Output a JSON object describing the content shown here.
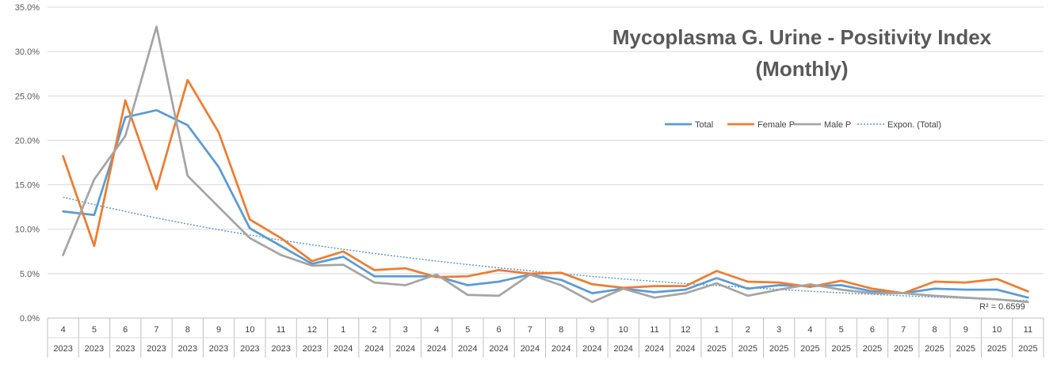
{
  "chart_data": {
    "type": "line",
    "title_lines": [
      "Mycoplasma G. Urine - Positivity Index",
      "(Monthly)"
    ],
    "xlabel": "",
    "ylabel": "",
    "ylim": [
      0,
      35
    ],
    "y_ticks": [
      "0.0%",
      "5.0%",
      "10.0%",
      "15.0%",
      "20.0%",
      "25.0%",
      "30.0%",
      "35.0%"
    ],
    "grid": true,
    "legend_position": "top-right",
    "months": [
      "4",
      "5",
      "6",
      "7",
      "8",
      "9",
      "10",
      "11",
      "12",
      "1",
      "2",
      "3",
      "4",
      "5",
      "6",
      "7",
      "8",
      "9",
      "10",
      "11",
      "12",
      "1",
      "2",
      "3",
      "4",
      "5",
      "6",
      "7",
      "8",
      "9",
      "10",
      "11"
    ],
    "years": [
      "2023",
      "2023",
      "2023",
      "2023",
      "2023",
      "2023",
      "2023",
      "2023",
      "2023",
      "2024",
      "2024",
      "2024",
      "2024",
      "2024",
      "2024",
      "2024",
      "2024",
      "2024",
      "2024",
      "2024",
      "2024",
      "2025",
      "2025",
      "2025",
      "2025",
      "2025",
      "2025",
      "2025",
      "2025",
      "2025",
      "2025",
      "2025"
    ],
    "series": [
      {
        "name": "Total",
        "color": "#5B9BD5",
        "values": [
          12.0,
          11.6,
          22.6,
          23.4,
          21.7,
          17.0,
          10.1,
          8.1,
          6.1,
          6.9,
          4.7,
          4.7,
          4.7,
          3.7,
          4.1,
          4.9,
          4.3,
          2.8,
          3.3,
          2.9,
          3.2,
          4.5,
          3.3,
          3.7,
          3.6,
          3.7,
          3.0,
          2.8,
          3.3,
          3.2,
          3.2,
          2.3
        ]
      },
      {
        "name": "Female P",
        "color": "#ED7D31",
        "values": [
          18.2,
          8.1,
          24.5,
          14.5,
          26.8,
          20.9,
          11.1,
          9.0,
          6.4,
          7.5,
          5.4,
          5.6,
          4.6,
          4.7,
          5.4,
          5.0,
          5.1,
          3.8,
          3.4,
          3.6,
          3.6,
          5.3,
          4.1,
          4.0,
          3.5,
          4.2,
          3.3,
          2.8,
          4.1,
          4.0,
          4.4,
          3.0
        ]
      },
      {
        "name": "Male P",
        "color": "#A5A5A5",
        "values": [
          7.1,
          15.6,
          20.5,
          32.8,
          16.0,
          12.5,
          9.0,
          7.1,
          5.9,
          6.0,
          4.0,
          3.7,
          4.9,
          2.6,
          2.5,
          4.9,
          3.7,
          1.8,
          3.3,
          2.3,
          2.8,
          3.9,
          2.5,
          3.2,
          3.8,
          3.2,
          2.8,
          2.8,
          2.5,
          2.3,
          2.1,
          1.8
        ]
      }
    ],
    "trendline": {
      "name": "Expon. (Total)",
      "color": "#5B9BD5",
      "start": 13.6,
      "end": 1.95,
      "r_squared_label": "R² = 0.6599"
    }
  }
}
